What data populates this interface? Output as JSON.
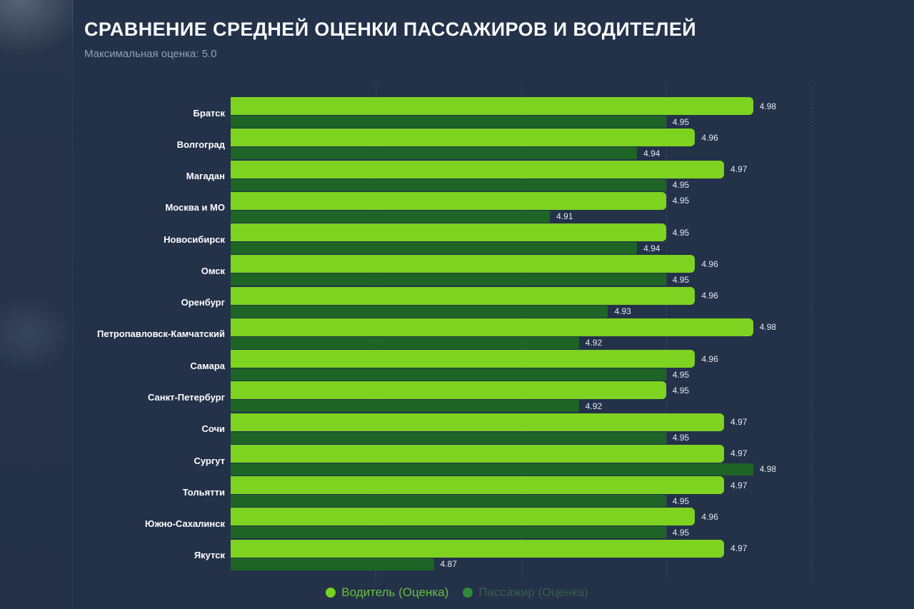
{
  "page": {
    "background_color": "#233149",
    "accent_green": "#7ed321",
    "dark_green": "#1e6426"
  },
  "header": {
    "title": "СРАВНЕНИЕ СРЕДНЕЙ ОЦЕНКИ ПАССАЖИРОВ И ВОДИТЕЛЕЙ",
    "subtitle": "Максимальная оценка: 5.0"
  },
  "legend": {
    "position": "bottom",
    "items": [
      {
        "dot_color": "#76d21e",
        "text_color": "#67c13e"
      },
      {
        "dot_color": "#2e8b3a",
        "text_color": "#3f5b4d"
      }
    ]
  },
  "chart_data": {
    "type": "bar",
    "orientation": "horizontal",
    "title": "СРАВНЕНИЕ СРЕДНЕЙ ОЦЕНКИ ПАССАЖИРОВ И ВОДИТЕЛЕЙ",
    "subtitle": "Максимальная оценка: 5.0",
    "categories": [
      "Братск",
      "Волгоград",
      "Магадан",
      "Москва и МО",
      "Новосибирск",
      "Омск",
      "Оренбург",
      "Петропавловск-Камчатский",
      "Самара",
      "Санкт-Петербург",
      "Сочи",
      "Сургут",
      "Тольятти",
      "Южно-Сахалинск",
      "Якутск"
    ],
    "series": [
      {
        "name": "Водитель (Оценка)",
        "color": "#7ed321",
        "values": [
          4.98,
          4.96,
          4.97,
          4.95,
          4.95,
          4.96,
          4.96,
          4.98,
          4.96,
          4.95,
          4.97,
          4.97,
          4.97,
          4.96,
          4.97
        ]
      },
      {
        "name": "Пассажир (Оценка)",
        "color": "#1e6426",
        "values": [
          4.95,
          4.94,
          4.95,
          4.91,
          4.94,
          4.95,
          4.93,
          4.92,
          4.95,
          4.92,
          4.95,
          4.98,
          4.95,
          4.95,
          4.87
        ]
      }
    ],
    "xlim": [
      4.8,
      5.0
    ],
    "gridlines": [
      4.85,
      4.9,
      4.95,
      5.0
    ],
    "grid_style": "dashed",
    "value_labels": true,
    "legend_position": "bottom"
  }
}
